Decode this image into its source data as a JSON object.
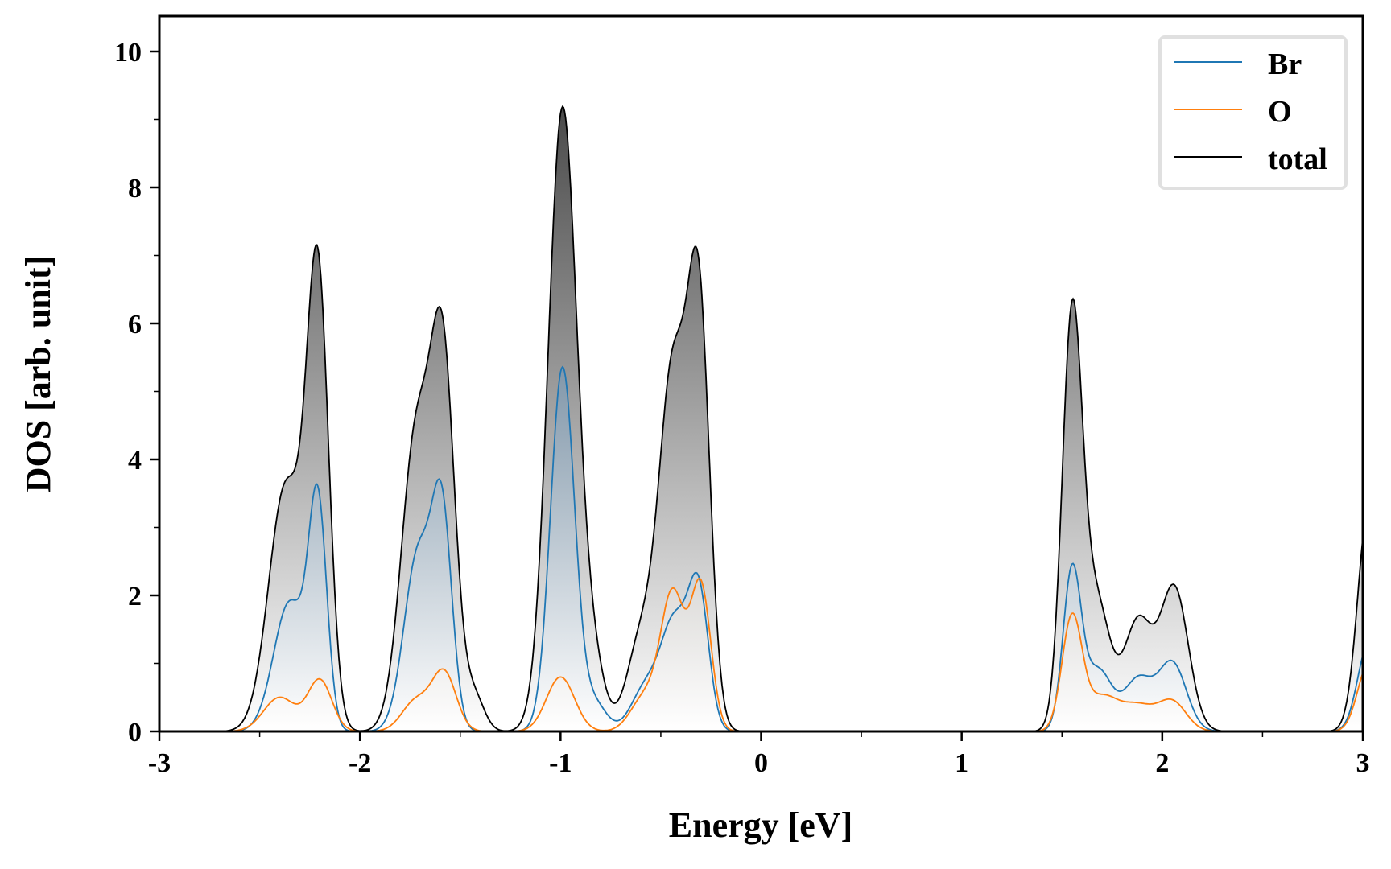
{
  "chart_data": {
    "type": "area",
    "title": "",
    "xlabel": "Energy [eV]",
    "ylabel": "DOS [arb. unit]",
    "xlim": [
      -3,
      3
    ],
    "ylim": [
      0,
      10.5
    ],
    "xticks": [
      -3,
      -2,
      -1,
      0,
      1,
      2,
      3
    ],
    "xtick_labels": [
      "-3",
      "-2",
      "-1",
      "0",
      "1",
      "2",
      "3"
    ],
    "yticks": [
      0,
      2,
      4,
      6,
      8,
      10
    ],
    "ytick_labels": [
      "0",
      "2",
      "4",
      "6",
      "8",
      "10"
    ],
    "grid": false,
    "legend_position": "top-right",
    "series_model": "sum of gaussian peaks [center_eV, height, sigma_eV]",
    "series": [
      {
        "name": "total",
        "color": "#000000",
        "fill_top": "#3a3a3a",
        "peaks": [
          [
            -2.21,
            6.5,
            0.055
          ],
          [
            -2.37,
            3.6,
            0.085
          ],
          [
            -1.585,
            5.2,
            0.06
          ],
          [
            -1.72,
            4.3,
            0.075
          ],
          [
            -1.43,
            0.5,
            0.05
          ],
          [
            -0.99,
            9.15,
            0.072
          ],
          [
            -0.84,
            0.9,
            0.06
          ],
          [
            -0.44,
            5.2,
            0.07
          ],
          [
            -0.31,
            6.0,
            0.055
          ],
          [
            -0.6,
            1.3,
            0.07
          ],
          [
            1.55,
            5.9,
            0.05
          ],
          [
            1.67,
            1.9,
            0.07
          ],
          [
            1.88,
            1.6,
            0.07
          ],
          [
            2.06,
            2.1,
            0.07
          ],
          [
            3.03,
            3.3,
            0.055
          ]
        ]
      },
      {
        "name": "Br",
        "color": "#1f77b4",
        "fill_top": "#0d3d66",
        "peaks": [
          [
            -2.21,
            3.2,
            0.045
          ],
          [
            -2.35,
            1.9,
            0.08
          ],
          [
            -1.59,
            3.0,
            0.05
          ],
          [
            -1.71,
            2.6,
            0.07
          ],
          [
            -0.99,
            5.35,
            0.06
          ],
          [
            -0.83,
            0.4,
            0.06
          ],
          [
            -0.43,
            1.6,
            0.07
          ],
          [
            -0.31,
            1.9,
            0.05
          ],
          [
            -0.58,
            0.6,
            0.07
          ],
          [
            1.55,
            2.3,
            0.045
          ],
          [
            1.68,
            0.9,
            0.07
          ],
          [
            1.88,
            0.75,
            0.07
          ],
          [
            2.05,
            1.0,
            0.07
          ],
          [
            3.03,
            1.3,
            0.055
          ]
        ]
      },
      {
        "name": "O",
        "color": "#ff7f0e",
        "fill_top": "#6e604f",
        "peaks": [
          [
            -2.2,
            0.75,
            0.06
          ],
          [
            -2.4,
            0.5,
            0.08
          ],
          [
            -1.58,
            0.85,
            0.06
          ],
          [
            -1.72,
            0.45,
            0.07
          ],
          [
            -1.0,
            0.8,
            0.07
          ],
          [
            -0.44,
            2.0,
            0.06
          ],
          [
            -0.3,
            2.1,
            0.05
          ],
          [
            -0.58,
            0.5,
            0.07
          ],
          [
            1.55,
            1.65,
            0.05
          ],
          [
            1.7,
            0.5,
            0.08
          ],
          [
            1.88,
            0.36,
            0.08
          ],
          [
            2.05,
            0.43,
            0.07
          ],
          [
            3.03,
            1.0,
            0.055
          ]
        ]
      }
    ],
    "legend": [
      "Br",
      "O",
      "total"
    ]
  }
}
